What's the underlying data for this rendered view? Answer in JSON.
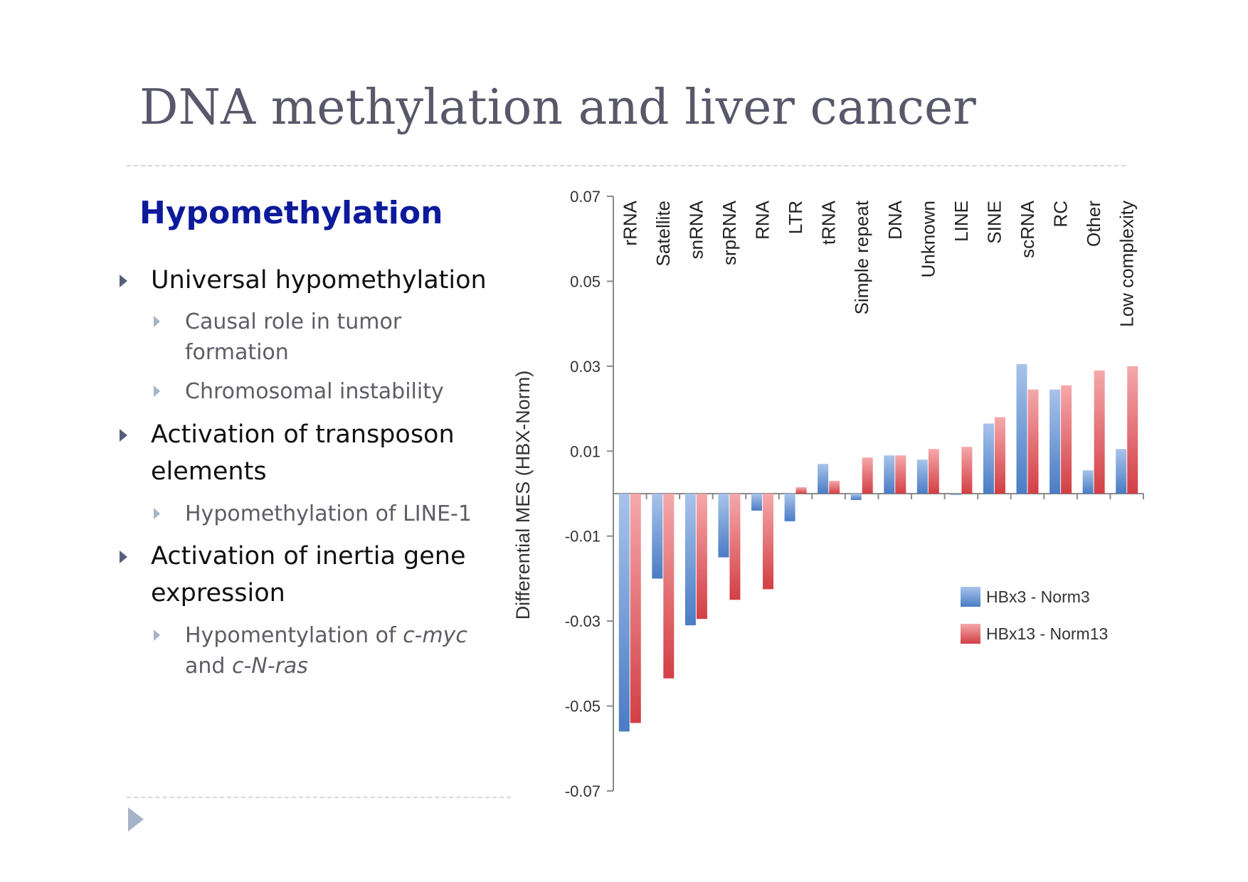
{
  "title": "DNA methylation and liver cancer",
  "heading": "Hypomethylation",
  "bullets": {
    "b1": "Universal hypomethylation",
    "b1_sub1": "Causal role in tumor formation",
    "b1_sub2": "Chromosomal instability",
    "b2": "Activation of transposon elements",
    "b2_sub1": "Hypomethylation of LINE-1",
    "b3": "Activation of inertia gene expression",
    "b3_sub1": {
      "pre": "Hypomentylation of ",
      "it1": "c-myc",
      "mid": " and ",
      "it2": "c-N-ras"
    }
  },
  "icons": {
    "bullet": "triangle-right-icon",
    "nav": "next-slide-arrow-icon"
  },
  "colors": {
    "title": "#58586a",
    "heading": "#0c1a9b",
    "series1": "#6f9ad8",
    "series2": "#e26a6e"
  },
  "chart_data": {
    "type": "bar",
    "ylabel": "Differential MES (HBX-Norm)",
    "ylim": [
      -0.07,
      0.07
    ],
    "yticks": [
      "0.07",
      "0.05",
      "0.03",
      "0.01",
      "-0.01",
      "-0.03",
      "-0.05",
      "-0.07"
    ],
    "ytick_values": [
      0.07,
      0.05,
      0.03,
      0.01,
      -0.01,
      -0.03,
      -0.05,
      -0.07
    ],
    "categories": [
      "rRNA",
      "Satellite",
      "snRNA",
      "srpRNA",
      "RNA",
      "LTR",
      "tRNA",
      "Simple repeat",
      "DNA",
      "Unknown",
      "LINE",
      "SINE",
      "scRNA",
      "RC",
      "Other",
      "Low complexity"
    ],
    "series": [
      {
        "name": "HBx3 - Norm3",
        "values": [
          -0.056,
          -0.02,
          -0.031,
          -0.015,
          -0.004,
          -0.0065,
          0.007,
          -0.0015,
          0.009,
          0.008,
          -0.0003,
          0.0165,
          0.0305,
          0.0245,
          0.0055,
          0.0105
        ]
      },
      {
        "name": "HBx13 - Norm13",
        "values": [
          -0.054,
          -0.0435,
          -0.0295,
          -0.025,
          -0.0225,
          0.0015,
          0.003,
          0.0085,
          0.009,
          0.0105,
          0.011,
          0.018,
          0.0245,
          0.0255,
          0.029,
          0.03
        ]
      }
    ],
    "legend": "right",
    "grid": false
  }
}
